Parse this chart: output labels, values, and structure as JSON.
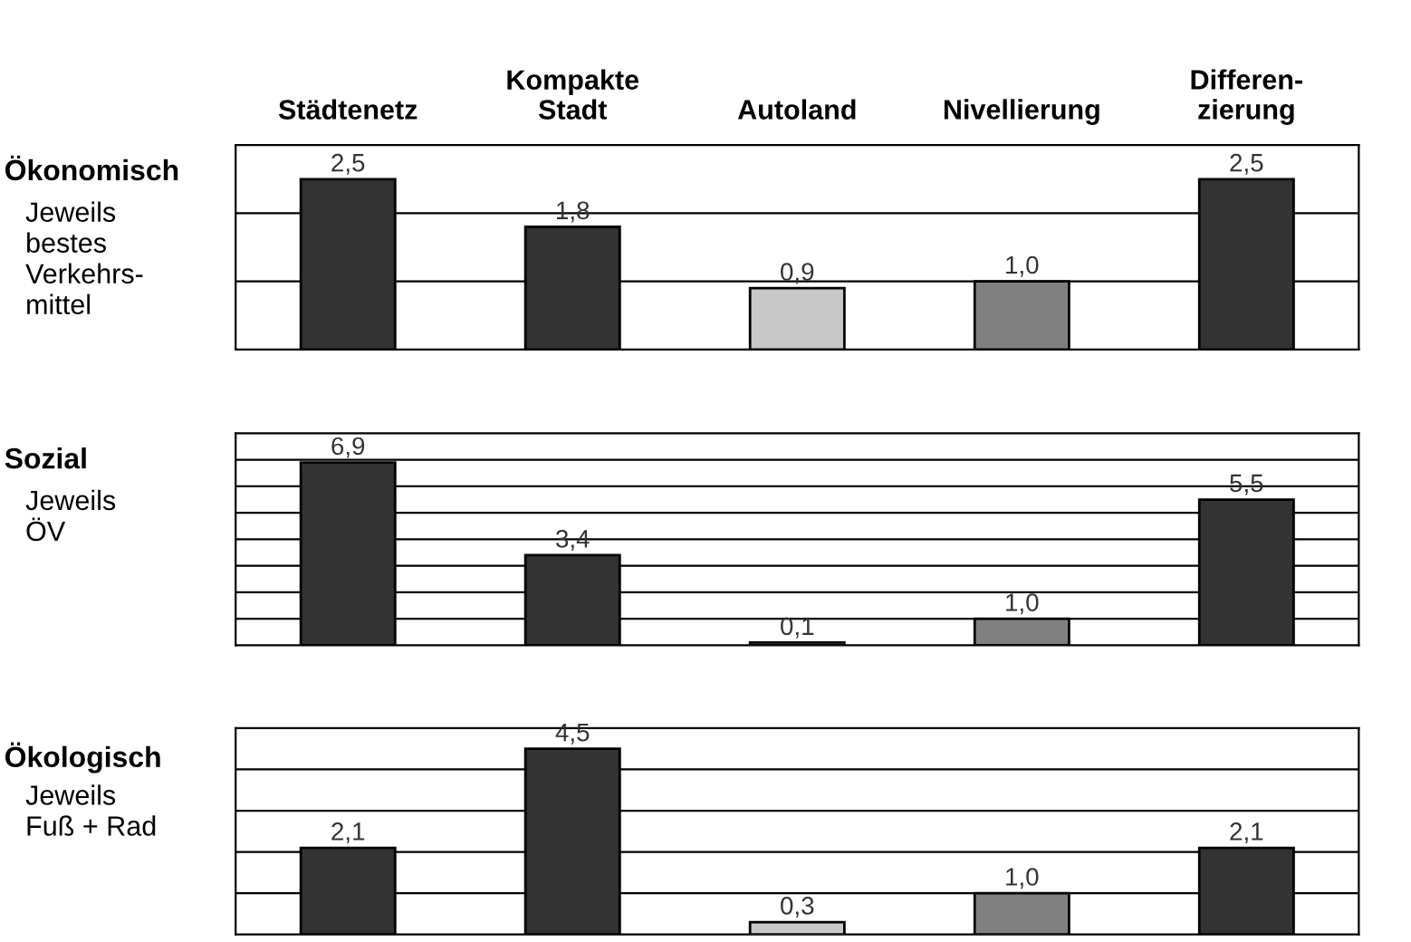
{
  "chart_data": [
    {
      "type": "bar",
      "title": "Ökonomisch",
      "subtitle": "Jeweils\nbestes\nVerkehrs-\nmittel",
      "categories": [
        "Städtenetz",
        "Kompakte\nStadt",
        "Autoland",
        "Nivellierung",
        "Differen-\nzierung"
      ],
      "values": [
        2.5,
        1.8,
        0.9,
        1.0,
        2.5
      ],
      "value_labels": [
        "2,5",
        "1,8",
        "0,9",
        "1,0",
        "2,5"
      ],
      "colors": [
        "#333333",
        "#333333",
        "#c8c8c8",
        "#808080",
        "#333333"
      ],
      "ylim": [
        0,
        3
      ],
      "yticks": [
        {
          "value": 1,
          "label": null
        },
        {
          "value": 2,
          "label": null
        }
      ],
      "grid": "y",
      "tick_labels": "x"
    },
    {
      "type": "bar",
      "title": "Sozial",
      "subtitle": "Jeweils\nÖV",
      "categories": [
        null,
        null,
        null,
        null,
        null
      ],
      "values": [
        6.9,
        3.4,
        0.1,
        1.0,
        5.5
      ],
      "value_labels": [
        "6,9",
        "3,4",
        "0,1",
        "1,0",
        "5,5"
      ],
      "colors": [
        "#333333",
        "#333333",
        "#c8c8c8",
        "#808080",
        "#333333"
      ],
      "ylim": [
        0,
        8
      ],
      "yticks": [
        {
          "value": 1,
          "label": null
        },
        {
          "value": 2,
          "label": null
        },
        {
          "value": 3,
          "label": null
        },
        {
          "value": 4,
          "label": null
        },
        {
          "value": 5,
          "label": null
        },
        {
          "value": 6,
          "label": null
        },
        {
          "value": 7,
          "label": null
        }
      ],
      "grid": "y",
      "tick_labels": false
    },
    {
      "type": "bar",
      "title": "Ökologisch",
      "subtitle": "Jeweils\nFuß + Rad",
      "categories": [
        null,
        null,
        null,
        null,
        null
      ],
      "values": [
        2.1,
        4.5,
        0.3,
        1.0,
        2.1
      ],
      "value_labels": [
        "2,1",
        "4,5",
        "0,3",
        "1,0",
        "2,1"
      ],
      "colors": [
        "#333333",
        "#333333",
        "#c8c8c8",
        "#808080",
        "#333333"
      ],
      "ylim": [
        0,
        5
      ],
      "yticks": [
        {
          "value": 1,
          "label": null
        },
        {
          "value": 2,
          "label": null
        },
        {
          "value": 3,
          "label": null
        },
        {
          "value": 4,
          "label": null
        }
      ],
      "grid": "y",
      "tick_labels": false
    }
  ]
}
